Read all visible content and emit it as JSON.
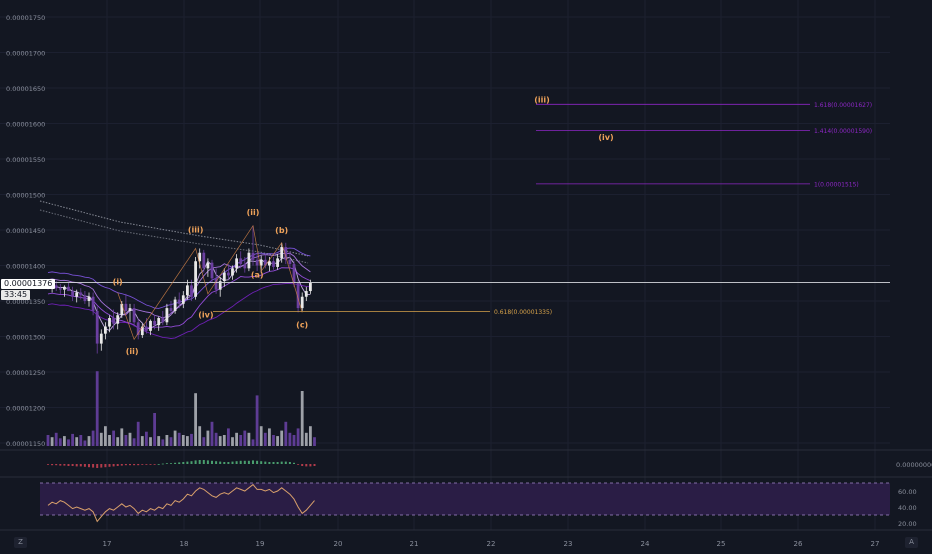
{
  "chart_data": {
    "type": "candlestick",
    "price_axis": {
      "ticks": [
        "0.00001750",
        "0.00001700",
        "0.00001650",
        "0.00001600",
        "0.00001550",
        "0.00001500",
        "0.00001450",
        "0.00001400",
        "0.00001350",
        "0.00001300",
        "0.00001250",
        "0.00001200",
        "0.00001150"
      ],
      "range": [
        1.14e-05,
        1.77e-05
      ]
    },
    "time_axis": {
      "ticks": [
        "17",
        "18",
        "19",
        "20",
        "21",
        "22",
        "23",
        "24",
        "25",
        "26",
        "27"
      ]
    },
    "current_price": {
      "value": 1.376e-05,
      "label": "0.00001376",
      "countdown": "33:45"
    },
    "candles": [
      {
        "o": 1.376e-05,
        "h": 1.38e-05,
        "l": 1.366e-05,
        "c": 1.37e-05
      },
      {
        "o": 1.37e-05,
        "h": 1.376e-05,
        "l": 1.362e-05,
        "c": 1.372e-05
      },
      {
        "o": 1.372e-05,
        "h": 1.378e-05,
        "l": 1.364e-05,
        "c": 1.368e-05
      },
      {
        "o": 1.368e-05,
        "h": 1.374e-05,
        "l": 1.36e-05,
        "c": 1.366e-05
      },
      {
        "o": 1.366e-05,
        "h": 1.372e-05,
        "l": 1.356e-05,
        "c": 1.37e-05
      },
      {
        "o": 1.37e-05,
        "h": 1.376e-05,
        "l": 1.364e-05,
        "c": 1.364e-05
      },
      {
        "o": 1.364e-05,
        "h": 1.37e-05,
        "l": 1.35e-05,
        "c": 1.356e-05
      },
      {
        "o": 1.356e-05,
        "h": 1.366e-05,
        "l": 1.348e-05,
        "c": 1.362e-05
      },
      {
        "o": 1.362e-05,
        "h": 1.368e-05,
        "l": 1.352e-05,
        "c": 1.358e-05
      },
      {
        "o": 1.358e-05,
        "h": 1.364e-05,
        "l": 1.346e-05,
        "c": 1.35e-05
      },
      {
        "o": 1.35e-05,
        "h": 1.362e-05,
        "l": 1.342e-05,
        "c": 1.356e-05
      },
      {
        "o": 1.356e-05,
        "h": 1.362e-05,
        "l": 1.33e-05,
        "c": 1.336e-05
      },
      {
        "o": 1.336e-05,
        "h": 1.342e-05,
        "l": 1.276e-05,
        "c": 1.29e-05
      },
      {
        "o": 1.29e-05,
        "h": 1.31e-05,
        "l": 1.28e-05,
        "c": 1.304e-05
      },
      {
        "o": 1.304e-05,
        "h": 1.32e-05,
        "l": 1.296e-05,
        "c": 1.314e-05
      },
      {
        "o": 1.314e-05,
        "h": 1.33e-05,
        "l": 1.306e-05,
        "c": 1.326e-05
      },
      {
        "o": 1.326e-05,
        "h": 1.338e-05,
        "l": 1.31e-05,
        "c": 1.318e-05
      },
      {
        "o": 1.318e-05,
        "h": 1.334e-05,
        "l": 1.31e-05,
        "c": 1.33e-05
      },
      {
        "o": 1.33e-05,
        "h": 1.35e-05,
        "l": 1.326e-05,
        "c": 1.346e-05
      },
      {
        "o": 1.346e-05,
        "h": 1.36e-05,
        "l": 1.33e-05,
        "c": 1.336e-05
      },
      {
        "o": 1.336e-05,
        "h": 1.346e-05,
        "l": 1.32e-05,
        "c": 1.34e-05
      },
      {
        "o": 1.34e-05,
        "h": 1.346e-05,
        "l": 1.314e-05,
        "c": 1.32e-05
      },
      {
        "o": 1.32e-05,
        "h": 1.326e-05,
        "l": 1.296e-05,
        "c": 1.302e-05
      },
      {
        "o": 1.302e-05,
        "h": 1.318e-05,
        "l": 1.298e-05,
        "c": 1.314e-05
      },
      {
        "o": 1.314e-05,
        "h": 1.326e-05,
        "l": 1.304e-05,
        "c": 1.308e-05
      },
      {
        "o": 1.308e-05,
        "h": 1.324e-05,
        "l": 1.302e-05,
        "c": 1.322e-05
      },
      {
        "o": 1.322e-05,
        "h": 1.33e-05,
        "l": 1.31e-05,
        "c": 1.316e-05
      },
      {
        "o": 1.316e-05,
        "h": 1.328e-05,
        "l": 1.308e-05,
        "c": 1.326e-05
      },
      {
        "o": 1.326e-05,
        "h": 1.336e-05,
        "l": 1.316e-05,
        "c": 1.32e-05
      },
      {
        "o": 1.32e-05,
        "h": 1.346e-05,
        "l": 1.316e-05,
        "c": 1.34e-05
      },
      {
        "o": 1.34e-05,
        "h": 1.35e-05,
        "l": 1.33e-05,
        "c": 1.336e-05
      },
      {
        "o": 1.336e-05,
        "h": 1.356e-05,
        "l": 1.332e-05,
        "c": 1.352e-05
      },
      {
        "o": 1.352e-05,
        "h": 1.362e-05,
        "l": 1.34e-05,
        "c": 1.346e-05
      },
      {
        "o": 1.346e-05,
        "h": 1.364e-05,
        "l": 1.34e-05,
        "c": 1.358e-05
      },
      {
        "o": 1.358e-05,
        "h": 1.38e-05,
        "l": 1.352e-05,
        "c": 1.372e-05
      },
      {
        "o": 1.372e-05,
        "h": 1.38e-05,
        "l": 1.35e-05,
        "c": 1.356e-05
      },
      {
        "o": 1.356e-05,
        "h": 1.412e-05,
        "l": 1.352e-05,
        "c": 1.406e-05
      },
      {
        "o": 1.406e-05,
        "h": 1.424e-05,
        "l": 1.396e-05,
        "c": 1.418e-05
      },
      {
        "o": 1.418e-05,
        "h": 1.422e-05,
        "l": 1.39e-05,
        "c": 1.396e-05
      },
      {
        "o": 1.396e-05,
        "h": 1.41e-05,
        "l": 1.384e-05,
        "c": 1.404e-05
      },
      {
        "o": 1.404e-05,
        "h": 1.408e-05,
        "l": 1.376e-05,
        "c": 1.382e-05
      },
      {
        "o": 1.382e-05,
        "h": 1.396e-05,
        "l": 1.36e-05,
        "c": 1.366e-05
      },
      {
        "o": 1.366e-05,
        "h": 1.384e-05,
        "l": 1.356e-05,
        "c": 1.378e-05
      },
      {
        "o": 1.378e-05,
        "h": 1.396e-05,
        "l": 1.37e-05,
        "c": 1.39e-05
      },
      {
        "o": 1.39e-05,
        "h": 1.402e-05,
        "l": 1.38e-05,
        "c": 1.386e-05
      },
      {
        "o": 1.386e-05,
        "h": 1.4e-05,
        "l": 1.38e-05,
        "c": 1.396e-05
      },
      {
        "o": 1.396e-05,
        "h": 1.416e-05,
        "l": 1.39e-05,
        "c": 1.41e-05
      },
      {
        "o": 1.41e-05,
        "h": 1.42e-05,
        "l": 1.396e-05,
        "c": 1.402e-05
      },
      {
        "o": 1.402e-05,
        "h": 1.412e-05,
        "l": 1.39e-05,
        "c": 1.396e-05
      },
      {
        "o": 1.396e-05,
        "h": 1.424e-05,
        "l": 1.392e-05,
        "c": 1.418e-05
      },
      {
        "o": 1.418e-05,
        "h": 1.456e-05,
        "l": 1.4e-05,
        "c": 1.408e-05
      },
      {
        "o": 1.408e-05,
        "h": 1.418e-05,
        "l": 1.392e-05,
        "c": 1.4e-05
      },
      {
        "o": 1.4e-05,
        "h": 1.414e-05,
        "l": 1.39e-05,
        "c": 1.408e-05
      },
      {
        "o": 1.408e-05,
        "h": 1.416e-05,
        "l": 1.396e-05,
        "c": 1.4e-05
      },
      {
        "o": 1.4e-05,
        "h": 1.412e-05,
        "l": 1.392e-05,
        "c": 1.406e-05
      },
      {
        "o": 1.406e-05,
        "h": 1.412e-05,
        "l": 1.394e-05,
        "c": 1.398e-05
      },
      {
        "o": 1.398e-05,
        "h": 1.416e-05,
        "l": 1.394e-05,
        "c": 1.41e-05
      },
      {
        "o": 1.41e-05,
        "h": 1.432e-05,
        "l": 1.404e-05,
        "c": 1.426e-05
      },
      {
        "o": 1.426e-05,
        "h": 1.432e-05,
        "l": 1.402e-05,
        "c": 1.408e-05
      },
      {
        "o": 1.408e-05,
        "h": 1.42e-05,
        "l": 1.396e-05,
        "c": 1.402e-05
      },
      {
        "o": 1.402e-05,
        "h": 1.406e-05,
        "l": 1.37e-05,
        "c": 1.376e-05
      },
      {
        "o": 1.376e-05,
        "h": 1.38e-05,
        "l": 1.334e-05,
        "c": 1.34e-05
      },
      {
        "o": 1.34e-05,
        "h": 1.362e-05,
        "l": 1.336e-05,
        "c": 1.356e-05
      },
      {
        "o": 1.356e-05,
        "h": 1.37e-05,
        "l": 1.35e-05,
        "c": 1.364e-05
      },
      {
        "o": 1.364e-05,
        "h": 1.38e-05,
        "l": 1.36e-05,
        "c": 1.376e-05
      }
    ],
    "volumes": [
      0.1,
      0.08,
      0.12,
      0.07,
      0.09,
      0.06,
      0.11,
      0.08,
      0.1,
      0.05,
      0.09,
      0.14,
      0.68,
      0.12,
      0.18,
      0.1,
      0.14,
      0.08,
      0.16,
      0.1,
      0.12,
      0.07,
      0.22,
      0.09,
      0.13,
      0.08,
      0.3,
      0.09,
      0.06,
      0.1,
      0.08,
      0.14,
      0.12,
      0.1,
      0.09,
      0.11,
      0.48,
      0.18,
      0.08,
      0.14,
      0.22,
      0.12,
      0.09,
      0.1,
      0.16,
      0.08,
      0.12,
      0.1,
      0.14,
      0.12,
      0.06,
      0.46,
      0.18,
      0.12,
      0.16,
      0.1,
      0.09,
      0.14,
      0.22,
      0.12,
      0.1,
      0.16,
      0.5,
      0.12,
      0.18,
      0.08
    ],
    "waves": [
      {
        "label": "(i)",
        "price": 1.365e-05,
        "wave": "(i)"
      },
      {
        "label": "(ii)",
        "price": 1.292e-05,
        "wave": "(ii)"
      },
      {
        "label": "(iii)",
        "price": 1.438e-05,
        "wave": "(iii)"
      },
      {
        "label": "(iv)",
        "price": 1.342e-05,
        "wave": "(iv)"
      },
      {
        "label": "(ii)",
        "price": 1.468e-05,
        "wave": "top"
      },
      {
        "label": "(a)",
        "price": 1.387e-05,
        "wave": "(a)"
      },
      {
        "label": "(b)",
        "price": 1.443e-05,
        "wave": "(b)"
      },
      {
        "label": "(c)",
        "price": 1.327e-05,
        "wave": "(c)"
      }
    ],
    "projection_labels": [
      {
        "label": "(iii)",
        "price": 1.634e-05
      },
      {
        "label": "(iv)",
        "price": 1.581e-05
      }
    ],
    "fib_levels": [
      {
        "label": "1.618(0.00001627)",
        "price": 1.627e-05
      },
      {
        "label": "1.414(0.00001590)",
        "price": 1.59e-05
      },
      {
        "label": "1(0.00001515)",
        "price": 1.515e-05
      },
      {
        "label": "0.618(0.00001335)",
        "price": 1.335e-05
      }
    ],
    "macd": [
      -0.2,
      -0.3,
      -0.3,
      -0.4,
      -0.4,
      -0.5,
      -0.5,
      -0.6,
      -0.6,
      -0.7,
      -0.8,
      -0.9,
      -1.0,
      -0.9,
      -0.8,
      -0.7,
      -0.6,
      -0.5,
      -0.4,
      -0.3,
      -0.3,
      -0.3,
      -0.3,
      -0.2,
      -0.2,
      -0.1,
      -0.1,
      0.0,
      0.1,
      0.2,
      0.2,
      0.3,
      0.4,
      0.5,
      0.6,
      0.7,
      0.9,
      1.0,
      1.0,
      0.9,
      0.8,
      0.7,
      0.6,
      0.5,
      0.5,
      0.6,
      0.7,
      0.8,
      0.8,
      0.8,
      0.9,
      0.8,
      0.7,
      0.6,
      0.5,
      0.5,
      0.5,
      0.6,
      0.6,
      0.5,
      0.3,
      -0.1,
      -0.5,
      -0.6,
      -0.6,
      -0.5
    ],
    "rsi": {
      "axis_ticks": [
        "60.00",
        "40.00",
        "20.00"
      ],
      "upper": 70,
      "lower": 30,
      "values": [
        42,
        46,
        44,
        48,
        46,
        42,
        38,
        40,
        38,
        36,
        38,
        34,
        22,
        28,
        34,
        38,
        36,
        40,
        44,
        40,
        42,
        38,
        32,
        36,
        34,
        38,
        36,
        40,
        38,
        44,
        42,
        48,
        46,
        50,
        56,
        54,
        60,
        64,
        62,
        58,
        54,
        52,
        56,
        58,
        56,
        60,
        64,
        62,
        60,
        64,
        68,
        62,
        62,
        60,
        62,
        58,
        60,
        64,
        60,
        56,
        50,
        40,
        32,
        36,
        42,
        48
      ]
    },
    "macd_axis_tick": "0.00000000",
    "colors": {
      "background": "#131722",
      "up": "#e8e8e8",
      "down": "#6b3fa0",
      "volume_up": "#9ea1a8",
      "volume_down": "#5e3c94",
      "wave_label": "#f0a35a",
      "fib_upper": "#8c27c4",
      "fib_lower": "#d6a24a",
      "rsi_band": "#2a1d45",
      "rsi_line": "#d9a06b"
    }
  },
  "ui": {
    "corner_left": "Z",
    "corner_right": "A"
  }
}
